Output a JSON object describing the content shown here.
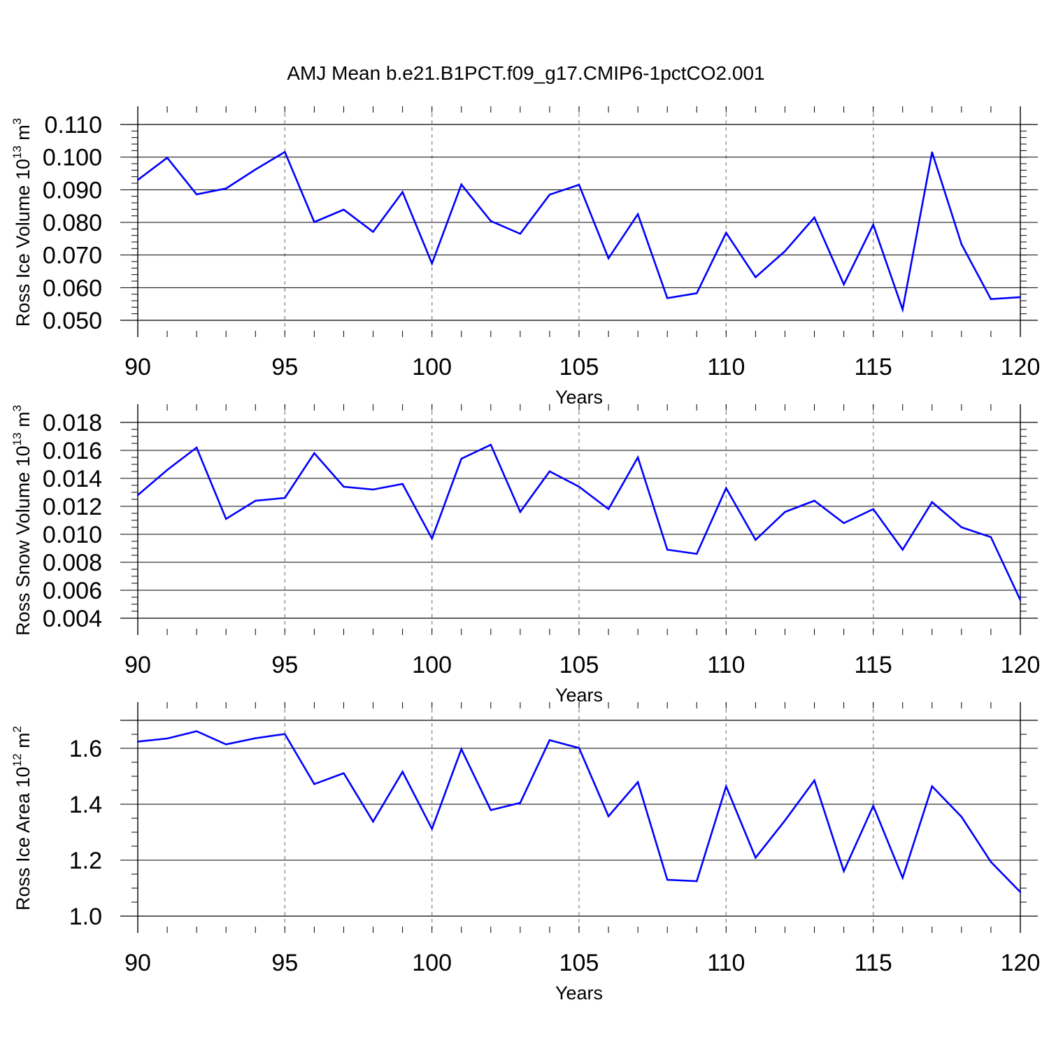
{
  "title": "AMJ Mean b.e21.B1PCT.f09_g17.CMIP6-1pctCO2.001",
  "colors": {
    "line": "#0000ff",
    "axis": "#000000",
    "grid": "#888888"
  },
  "chart_data": [
    {
      "type": "line",
      "xlabel": "Years",
      "ylabel": {
        "base": "Ross Ice Volume 10",
        "exp": "13",
        "unit": " m",
        "unit_exp": "3"
      },
      "xlim": [
        90,
        120
      ],
      "ylim": [
        0.05,
        0.11
      ],
      "x_ticks": [
        90,
        95,
        100,
        105,
        110,
        115,
        120
      ],
      "x_tick_labels": [
        "90",
        "95",
        "100",
        "105",
        "110",
        "115",
        "120"
      ],
      "y_ticks": [
        0.05,
        0.06,
        0.07,
        0.08,
        0.09,
        0.1,
        0.11
      ],
      "y_tick_labels": [
        "0.050",
        "0.060",
        "0.070",
        "0.080",
        "0.090",
        "0.100",
        "0.110"
      ],
      "y_minor_step": 0.002,
      "grid": "vertical dashed at major x ticks",
      "x": [
        90,
        91,
        92,
        93,
        94,
        95,
        96,
        97,
        98,
        99,
        100,
        101,
        102,
        103,
        104,
        105,
        106,
        107,
        108,
        109,
        110,
        111,
        112,
        113,
        114,
        115,
        116,
        117,
        118,
        119,
        120
      ],
      "values": [
        0.093,
        0.0998,
        0.0886,
        0.0904,
        0.0962,
        0.1016,
        0.0801,
        0.0839,
        0.0771,
        0.0893,
        0.0674,
        0.0916,
        0.0804,
        0.0765,
        0.0885,
        0.0915,
        0.069,
        0.0825,
        0.0568,
        0.0583,
        0.0768,
        0.0632,
        0.0712,
        0.0815,
        0.061,
        0.0793,
        0.0533,
        0.1015,
        0.0733,
        0.0565,
        0.0571
      ]
    },
    {
      "type": "line",
      "xlabel": "Years",
      "ylabel": {
        "base": "Ross Snow Volume 10",
        "exp": "13",
        "unit": " m",
        "unit_exp": "3"
      },
      "xlim": [
        90,
        120
      ],
      "ylim": [
        0.004,
        0.018
      ],
      "x_ticks": [
        90,
        95,
        100,
        105,
        110,
        115,
        120
      ],
      "x_tick_labels": [
        "90",
        "95",
        "100",
        "105",
        "110",
        "115",
        "120"
      ],
      "y_ticks": [
        0.004,
        0.006,
        0.008,
        0.01,
        0.012,
        0.014,
        0.016,
        0.018
      ],
      "y_tick_labels": [
        "0.004",
        "0.006",
        "0.008",
        "0.010",
        "0.012",
        "0.014",
        "0.016",
        "0.018"
      ],
      "y_minor_step": 0.0005,
      "grid": "vertical dashed at major x ticks",
      "x": [
        90,
        91,
        92,
        93,
        94,
        95,
        96,
        97,
        98,
        99,
        100,
        101,
        102,
        103,
        104,
        105,
        106,
        107,
        108,
        109,
        110,
        111,
        112,
        113,
        114,
        115,
        116,
        117,
        118,
        119,
        120
      ],
      "values": [
        0.0128,
        0.0146,
        0.0162,
        0.0111,
        0.0124,
        0.0126,
        0.0158,
        0.0134,
        0.0132,
        0.0136,
        0.0097,
        0.0154,
        0.0164,
        0.0116,
        0.0145,
        0.0134,
        0.0118,
        0.0155,
        0.0089,
        0.0086,
        0.0133,
        0.0096,
        0.0116,
        0.0124,
        0.0108,
        0.0118,
        0.0089,
        0.0123,
        0.0105,
        0.0098,
        0.0053
      ]
    },
    {
      "type": "line",
      "xlabel": "Years",
      "ylabel": {
        "base": "Ross Ice Area 10",
        "exp": "12",
        "unit": " m",
        "unit_exp": "2"
      },
      "xlim": [
        90,
        120
      ],
      "ylim": [
        1.0,
        1.7
      ],
      "x_ticks": [
        90,
        95,
        100,
        105,
        110,
        115,
        120
      ],
      "x_tick_labels": [
        "90",
        "95",
        "100",
        "105",
        "110",
        "115",
        "120"
      ],
      "y_ticks": [
        1.0,
        1.2,
        1.4,
        1.6
      ],
      "y_tick_labels": [
        "1.0",
        "1.2",
        "1.4",
        "1.6"
      ],
      "y_minor_step": 0.05,
      "grid": "vertical dashed at major x ticks",
      "x": [
        90,
        91,
        92,
        93,
        94,
        95,
        96,
        97,
        98,
        99,
        100,
        101,
        102,
        103,
        104,
        105,
        106,
        107,
        108,
        109,
        110,
        111,
        112,
        113,
        114,
        115,
        116,
        117,
        118,
        119,
        120
      ],
      "values": [
        1.624,
        1.635,
        1.661,
        1.614,
        1.636,
        1.651,
        1.472,
        1.511,
        1.338,
        1.516,
        1.312,
        1.597,
        1.379,
        1.405,
        1.629,
        1.601,
        1.357,
        1.479,
        1.13,
        1.125,
        1.464,
        1.209,
        1.342,
        1.485,
        1.161,
        1.394,
        1.137,
        1.464,
        1.355,
        1.194,
        1.086
      ]
    }
  ]
}
